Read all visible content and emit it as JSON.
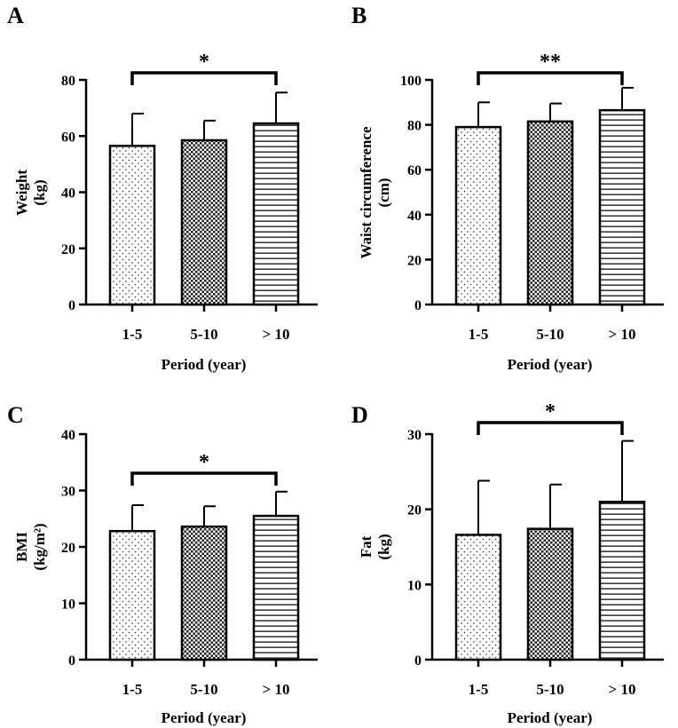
{
  "figure": {
    "panels": [
      "A",
      "B",
      "C",
      "D"
    ]
  },
  "chart_data": [
    {
      "panel": "A",
      "type": "bar",
      "categories": [
        "1-5",
        "5-10",
        "> 10"
      ],
      "values": [
        56.5,
        58.5,
        64.5
      ],
      "errors": [
        11.5,
        7.0,
        11.0
      ],
      "patterns": [
        "dots",
        "checker",
        "hlines"
      ],
      "xlabel": "Period (year)",
      "ylabel": "Weight",
      "ylabel_unit": "(kg)",
      "ylim": [
        0,
        80
      ],
      "yticks": [
        0,
        20,
        40,
        60,
        80
      ],
      "significance": {
        "from": 0,
        "to": 2,
        "label": "*"
      }
    },
    {
      "panel": "B",
      "type": "bar",
      "categories": [
        "1-5",
        "5-10",
        "> 10"
      ],
      "values": [
        79.0,
        81.5,
        86.5
      ],
      "errors": [
        11.0,
        8.0,
        10.0
      ],
      "patterns": [
        "dots",
        "checker",
        "hlines"
      ],
      "xlabel": "Period (year)",
      "ylabel": "Waist circumference",
      "ylabel_unit": "(cm)",
      "ylim": [
        0,
        100
      ],
      "yticks": [
        0,
        20,
        40,
        60,
        80,
        100
      ],
      "significance": {
        "from": 0,
        "to": 2,
        "label": "**"
      }
    },
    {
      "panel": "C",
      "type": "bar",
      "categories": [
        "1-5",
        "5-10",
        "> 10"
      ],
      "values": [
        22.8,
        23.6,
        25.5
      ],
      "errors": [
        4.6,
        3.6,
        4.3
      ],
      "patterns": [
        "dots",
        "checker",
        "hlines"
      ],
      "xlabel": "Period (year)",
      "ylabel": "BMI",
      "ylabel_unit": "(kg/m²)",
      "ylim": [
        0,
        40
      ],
      "yticks": [
        0,
        10,
        20,
        30,
        40
      ],
      "significance": {
        "from": 0,
        "to": 2,
        "label": "*"
      }
    },
    {
      "panel": "D",
      "type": "bar",
      "categories": [
        "1-5",
        "5-10",
        "> 10"
      ],
      "values": [
        16.6,
        17.4,
        21.0
      ],
      "errors": [
        7.2,
        5.9,
        8.1
      ],
      "patterns": [
        "dots",
        "checker",
        "hlines"
      ],
      "xlabel": "Period (year)",
      "ylabel": "Fat",
      "ylabel_unit": "(kg)",
      "ylim": [
        0,
        30
      ],
      "yticks": [
        0,
        10,
        20,
        30
      ],
      "significance": {
        "from": 0,
        "to": 2,
        "label": "*"
      }
    }
  ]
}
